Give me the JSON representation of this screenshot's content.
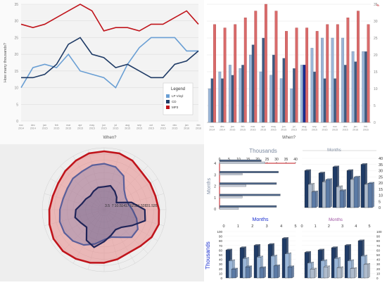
{
  "chart_data": [
    {
      "type": "line",
      "categories": [
        "nov 2014",
        "dec 2014",
        "jan 2015",
        "feb 2015",
        "mar 2015",
        "apr 2015",
        "may 2015",
        "jun 2015",
        "jul 2015",
        "aug 2015",
        "sep 2015",
        "oct 2015",
        "nov 2015",
        "dec 2015",
        "jan 2016",
        "feb 2016"
      ],
      "series": [
        {
          "name": "LP Vinyl",
          "color": "#6a9fd4",
          "values": [
            10,
            16,
            17,
            16,
            20,
            15,
            14,
            13,
            10,
            17,
            22,
            25,
            25,
            25,
            21,
            21
          ]
        },
        {
          "name": "CD",
          "color": "#1f3b66",
          "values": [
            13,
            13,
            14,
            17,
            23,
            25,
            20,
            19,
            16,
            17,
            15,
            13,
            13,
            17,
            18,
            21
          ]
        },
        {
          "name": "MP3",
          "color": "#c0141b",
          "values": [
            29,
            28,
            29,
            31,
            33,
            35,
            33,
            27,
            28,
            28,
            27,
            29,
            29,
            31,
            33,
            29
          ]
        }
      ],
      "xlabel": "When?",
      "ylabel": "How many thousands?",
      "ylim": [
        0,
        35
      ],
      "yticks": [
        "0",
        "5",
        "10",
        "15",
        "20",
        "25",
        "30",
        "35"
      ],
      "legend": {
        "title": "Legend",
        "position": "bottom-right"
      },
      "grid": true
    },
    {
      "type": "bar",
      "categories": [
        "nov 2014",
        "dec 2014",
        "jan 2015",
        "feb 2015",
        "mar 2015",
        "apr 2015",
        "may 2015",
        "jun 2015",
        "jul 2015",
        "aug 2015",
        "sep 2015",
        "oct 2015",
        "nov 2015",
        "dec 2015",
        "jan 2016",
        "feb 2016"
      ],
      "series": [
        {
          "color": "#9ab6d8",
          "values": [
            10,
            15,
            17,
            16,
            20,
            15,
            14,
            13,
            10,
            17,
            22,
            25,
            25,
            25,
            21,
            21
          ]
        },
        {
          "color": "#3d5a80",
          "values": [
            13,
            13,
            14,
            17,
            23,
            25,
            20,
            19,
            16,
            17,
            15,
            13,
            13,
            17,
            18,
            21
          ]
        },
        {
          "color": "#d96b6b",
          "values": [
            29,
            28,
            29,
            31,
            33,
            35,
            33,
            27,
            28,
            28,
            27,
            29,
            29,
            31,
            33,
            29
          ]
        }
      ],
      "highlight": {
        "category": "aug 2015",
        "series": 1
      },
      "xlabel": "When?",
      "ylim": [
        0,
        35
      ],
      "yticks": [
        "0",
        "5",
        "10",
        "15",
        "20",
        "25",
        "30",
        "35"
      ],
      "ylabel_right": "%"
    },
    {
      "type": "radar",
      "tick_labels": [
        "3.5",
        "7",
        "10.5",
        "14",
        "17.5",
        "21",
        "24.5",
        "28",
        "31.5",
        "35"
      ],
      "series": [
        {
          "color": "#c0141b",
          "fill": "#e88b8b",
          "values": [
            33,
            33,
            32,
            30,
            30,
            30,
            31,
            32,
            31,
            29,
            28,
            29,
            30,
            31,
            32,
            33,
            33,
            32,
            31,
            30,
            30,
            31,
            32,
            33
          ]
        },
        {
          "color": "#5a5f9a",
          "values": [
            26,
            25,
            22,
            16,
            14,
            14,
            16,
            19,
            22,
            22,
            18,
            16,
            17,
            20,
            23,
            25,
            26,
            26,
            25,
            24,
            24,
            25,
            25,
            26
          ]
        },
        {
          "color": "#1f2458",
          "values": [
            13,
            14,
            12,
            10,
            8,
            16,
            23,
            24,
            18,
            14,
            13,
            15,
            18,
            22,
            20,
            14,
            15,
            17,
            16,
            13,
            12,
            11,
            12,
            13
          ]
        }
      ]
    },
    {
      "type": "bar",
      "orientation": "horizontal",
      "title": "Thousands",
      "ylabel": "Months",
      "xticks": [
        "0",
        "5",
        "10",
        "15",
        "20",
        "25",
        "30",
        "35",
        "40"
      ],
      "yticks": [
        "0",
        "1",
        "2",
        "3",
        "4"
      ],
      "categories": [
        "0",
        "1",
        "2",
        "3",
        "4"
      ],
      "series": [
        {
          "color": "#4a6285",
          "values": [
            30,
            32,
            30,
            31,
            22
          ]
        },
        {
          "color": "#c7cfdc",
          "values": [
            10,
            12,
            14,
            12,
            24
          ]
        }
      ]
    },
    {
      "type": "bar3d",
      "title": "Months",
      "yticks_right": [
        "0",
        "5",
        "10",
        "15",
        "20",
        "25",
        "30",
        "35",
        "40"
      ],
      "series": [
        {
          "color": "#1f3b66",
          "values": [
            30,
            28,
            33,
            30,
            35
          ]
        },
        {
          "color": "#aebbcc",
          "values": [
            20,
            22,
            18,
            24,
            20
          ]
        },
        {
          "color": "#5b7aa5",
          "values": [
            15,
            25,
            16,
            27,
            22
          ]
        }
      ]
    },
    {
      "type": "bar3d",
      "title": "Months",
      "ylabel": "Thousands",
      "xticks": [
        "0",
        "1",
        "2",
        "3",
        "4",
        "5"
      ],
      "yticks": [
        "0",
        "10",
        "20",
        "30",
        "40",
        "50",
        "60",
        "70",
        "80",
        "90",
        "100"
      ],
      "series": [
        {
          "color": "#1f3b66",
          "values": [
            60,
            65,
            70,
            72,
            85
          ]
        },
        {
          "color": "#9ab6d8",
          "values": [
            40,
            45,
            48,
            50,
            55
          ]
        },
        {
          "color": "#5b7aa5",
          "values": [
            25,
            30,
            28,
            32,
            30
          ]
        }
      ]
    },
    {
      "type": "bar3d",
      "title": "Months",
      "xticks": [
        "0",
        "1",
        "2",
        "3",
        "4",
        "5"
      ],
      "yticks_right": [
        "0",
        "10",
        "20",
        "30",
        "40",
        "50",
        "60",
        "70",
        "80",
        "90",
        "100"
      ],
      "series": [
        {
          "color": "#1f3b66",
          "values": [
            55,
            60,
            65,
            70,
            80
          ]
        },
        {
          "color": "#9ab6d8",
          "values": [
            35,
            40,
            45,
            40,
            50
          ]
        },
        {
          "color": "#aebbcc",
          "values": [
            25,
            30,
            28,
            26,
            35
          ]
        }
      ]
    }
  ]
}
